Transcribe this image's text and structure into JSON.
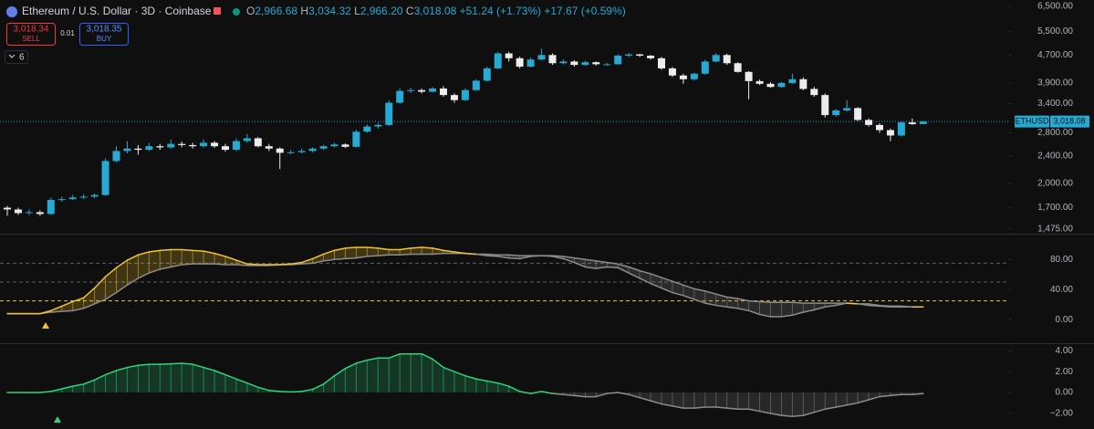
{
  "header": {
    "title": "Ethereum / U.S. Dollar · 3D · Coinbase",
    "open_label": "O",
    "open": "2,966.68",
    "high_label": "H",
    "high": "3,034.32",
    "low_label": "L",
    "low": "2,966.20",
    "close_label": "C",
    "close": "3,018.08",
    "change": "+51.24 (+1.73%)",
    "change_extra": "+17.67 (+0.59%)",
    "sell_price": "3,018.34",
    "sell": "SELL",
    "spread": "0.01",
    "buy_price": "3,018.35",
    "buy": "BUY",
    "indicators_count": "6",
    "symbol_tag": "ETHUSD",
    "last_price": "3,018.08"
  },
  "chart_data": [
    {
      "type": "candlestick",
      "log": true,
      "grid": false,
      "up_color": "#26a9d2",
      "down_color": "#ececec",
      "open": [
        1700,
        1680,
        1640,
        1650,
        1630,
        1790,
        1800,
        1820,
        1830,
        1850,
        2320,
        2480,
        2520,
        2500,
        2560,
        2540,
        2600,
        2580,
        2560,
        2620,
        2560,
        2500,
        2650,
        2700,
        2560,
        2520,
        2450,
        2460,
        2480,
        2520,
        2560,
        2590,
        2550,
        2820,
        2920,
        2950,
        3420,
        3700,
        3720,
        3680,
        3760,
        3600,
        3480,
        3720,
        3960,
        4300,
        4750,
        4600,
        4350,
        4560,
        4700,
        4450,
        4500,
        4400,
        4480,
        4420,
        4420,
        4680,
        4720,
        4680,
        4600,
        4300,
        4100,
        4000,
        4150,
        4500,
        4700,
        4450,
        4200,
        3950,
        3880,
        3800,
        3900,
        4000,
        3750,
        3600,
        3150,
        3250,
        3300,
        3050,
        2950,
        2850,
        2750,
        3000,
        2966.68
      ],
      "high": [
        1720,
        1700,
        1680,
        1670,
        1820,
        1830,
        1850,
        1860,
        1870,
        2360,
        2560,
        2650,
        2580,
        2620,
        2600,
        2680,
        2640,
        2620,
        2680,
        2650,
        2600,
        2700,
        2780,
        2720,
        2600,
        2540,
        2500,
        2520,
        2540,
        2580,
        2620,
        2610,
        2860,
        2960,
        2990,
        3480,
        3760,
        3780,
        3760,
        3800,
        3820,
        3640,
        3760,
        4000,
        4350,
        4800,
        4800,
        4650,
        4620,
        4900,
        4750,
        4560,
        4540,
        4520,
        4500,
        4460,
        4720,
        4760,
        4740,
        4700,
        4640,
        4340,
        4150,
        4180,
        4560,
        4760,
        4740,
        4480,
        4220,
        3990,
        3920,
        3930,
        4150,
        4050,
        3800,
        3640,
        3280,
        3480,
        3320,
        3080,
        2980,
        2880,
        3020,
        3080,
        3034.32
      ],
      "low": [
        1610,
        1620,
        1620,
        1610,
        1620,
        1770,
        1790,
        1800,
        1810,
        1840,
        2300,
        2440,
        2420,
        2480,
        2500,
        2520,
        2540,
        2520,
        2540,
        2530,
        2470,
        2480,
        2620,
        2540,
        2480,
        2200,
        2430,
        2440,
        2460,
        2500,
        2540,
        2530,
        2540,
        2800,
        2880,
        2930,
        3400,
        3650,
        3640,
        3660,
        3560,
        3420,
        3460,
        3700,
        3940,
        4280,
        4500,
        4300,
        4330,
        4540,
        4400,
        4420,
        4350,
        4380,
        4380,
        4380,
        4400,
        4640,
        4640,
        4560,
        4260,
        4060,
        3880,
        3960,
        4120,
        4480,
        4400,
        4180,
        3500,
        3850,
        3780,
        3780,
        3880,
        3720,
        3560,
        3100,
        3120,
        3220,
        3030,
        2920,
        2800,
        2650,
        2730,
        2950,
        2966.2
      ],
      "close": [
        1680,
        1640,
        1650,
        1630,
        1790,
        1800,
        1820,
        1830,
        1850,
        2320,
        2480,
        2520,
        2500,
        2560,
        2540,
        2600,
        2580,
        2560,
        2620,
        2560,
        2500,
        2650,
        2700,
        2560,
        2520,
        2450,
        2460,
        2480,
        2520,
        2560,
        2590,
        2550,
        2820,
        2920,
        2950,
        3420,
        3700,
        3720,
        3680,
        3760,
        3600,
        3480,
        3720,
        3960,
        4300,
        4750,
        4600,
        4350,
        4560,
        4700,
        4450,
        4500,
        4400,
        4480,
        4420,
        4420,
        4680,
        4720,
        4680,
        4600,
        4300,
        4100,
        4000,
        4150,
        4500,
        4700,
        4450,
        4200,
        3950,
        3880,
        3800,
        3900,
        4000,
        3750,
        3600,
        3150,
        3250,
        3300,
        3050,
        2950,
        2850,
        2750,
        3000,
        2966.68,
        3018.08
      ],
      "ylim": [
        1430,
        6780
      ],
      "yticks": [
        {
          "value": 6500,
          "label": "6,500.00"
        },
        {
          "value": 5500,
          "label": "5,500.00"
        },
        {
          "value": 4700,
          "label": "4,700.00"
        },
        {
          "value": 3900,
          "label": "3,900.00"
        },
        {
          "value": 3400,
          "label": "3,400.00"
        },
        {
          "value": 2800,
          "label": "2,800.00"
        },
        {
          "value": 2400,
          "label": "2,400.00"
        },
        {
          "value": 2000,
          "label": "2,000.00"
        },
        {
          "value": 1700,
          "label": "1,700.00"
        },
        {
          "value": 1475,
          "label": "1,475.00"
        }
      ]
    },
    {
      "type": "oscillator",
      "grid": false,
      "above_color": "#f0c330",
      "below_color": "#8c8c8c",
      "series": [
        {
          "color": "#f0c330",
          "values": [
            8,
            8,
            8,
            8,
            12,
            18,
            24,
            29,
            42,
            57,
            69,
            79,
            86,
            90,
            92,
            93,
            93,
            92,
            91,
            88,
            84,
            79,
            74,
            73,
            73,
            73,
            74,
            76,
            81,
            87,
            92,
            95,
            96,
            96,
            95,
            93,
            93,
            95,
            96,
            95,
            92,
            90,
            88,
            87,
            85,
            84,
            82,
            81,
            84,
            85,
            84,
            81,
            76,
            70,
            68,
            70,
            69,
            62,
            55,
            48,
            42,
            36,
            32,
            27,
            22,
            19,
            17,
            15,
            12,
            7,
            4,
            4,
            6,
            10,
            13,
            17,
            19,
            22,
            21,
            19,
            18,
            17,
            17,
            17,
            17
          ]
        },
        {
          "color": "#8c8c8c",
          "values": [
            8,
            8,
            8,
            8,
            10,
            11,
            12,
            15,
            21,
            27,
            36,
            46,
            55,
            62,
            67,
            70,
            73,
            74,
            74,
            74,
            73,
            73,
            72,
            72,
            72,
            73,
            73,
            74,
            75,
            78,
            80,
            81,
            82,
            84,
            85,
            86,
            86,
            87,
            87,
            87,
            88,
            88,
            88,
            87,
            87,
            86,
            86,
            85,
            85,
            85,
            85,
            84,
            82,
            80,
            78,
            76,
            74,
            70,
            65,
            61,
            56,
            51,
            46,
            41,
            38,
            34,
            30,
            28,
            25,
            24,
            23,
            23,
            23,
            22,
            22,
            22,
            22,
            22,
            21,
            21,
            19,
            18,
            18,
            17,
            17
          ]
        }
      ],
      "levels": [
        {
          "value": 75,
          "color": "#5d606b"
        },
        {
          "value": 50,
          "color": "#5d606b"
        },
        {
          "value": 25,
          "color": "#f0c330"
        }
      ],
      "ylim": [
        -30,
        113
      ],
      "yticks": [
        {
          "value": 80,
          "label": "80.00"
        },
        {
          "value": 40,
          "label": "40.00"
        },
        {
          "value": 0,
          "label": "0.00"
        }
      ]
    },
    {
      "type": "momentum",
      "grid": false,
      "positive_color": "#2ed47a",
      "negative_color": "#8c8c8c",
      "values": [
        0,
        0,
        0,
        0,
        0.1,
        0.35,
        0.6,
        0.8,
        1.2,
        1.7,
        2.1,
        2.4,
        2.6,
        2.7,
        2.7,
        2.75,
        2.8,
        2.7,
        2.4,
        2.1,
        1.7,
        1.3,
        0.9,
        0.5,
        0.2,
        0.1,
        0.05,
        0.1,
        0.3,
        0.8,
        1.6,
        2.3,
        2.8,
        3.1,
        3.3,
        3.3,
        3.7,
        3.7,
        3.7,
        3.2,
        2.4,
        2.0,
        1.6,
        1.3,
        1.1,
        0.9,
        0.6,
        0.1,
        -0.1,
        0.1,
        -0.1,
        -0.2,
        -0.3,
        -0.4,
        -0.4,
        -0.1,
        0,
        -0.2,
        -0.5,
        -0.8,
        -1.1,
        -1.3,
        -1.5,
        -1.5,
        -1.4,
        -1.4,
        -1.5,
        -1.6,
        -1.6,
        -1.8,
        -2,
        -2.2,
        -2.3,
        -2.2,
        -1.9,
        -1.6,
        -1.4,
        -1.2,
        -1,
        -0.7,
        -0.4,
        -0.3,
        -0.2,
        -0.2,
        -0.1
      ],
      "ylim": [
        -3.5,
        4.55
      ],
      "yticks": [
        {
          "value": 4,
          "label": "4.00"
        },
        {
          "value": 2,
          "label": "2.00"
        },
        {
          "value": 0,
          "label": "0.00"
        },
        {
          "value": -2,
          "label": "−2.00"
        }
      ]
    }
  ]
}
